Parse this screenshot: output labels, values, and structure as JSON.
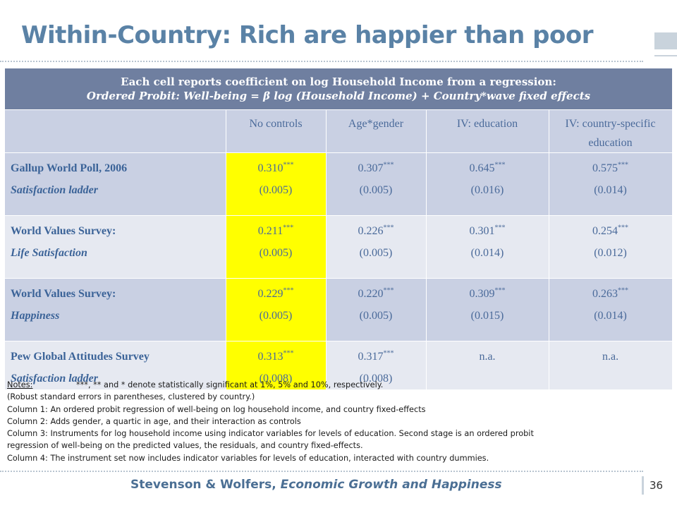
{
  "title": "Within-Country: Rich are happier than poor",
  "table": {
    "header_line1": "Each cell reports coefficient on log Household Income from a regression:",
    "header_line2": "Ordered Probit: Well-being = β log (Household Income) + Country*wave fixed effects",
    "columns": [
      "No controls",
      "Age*gender",
      "IV: education",
      "IV: country-specific education"
    ],
    "rows": [
      {
        "survey": "Gallup World Poll, 2006",
        "measure": "Satisfaction ladder",
        "cells": [
          {
            "coef": "0.310",
            "stars": "***",
            "se": "(0.005)"
          },
          {
            "coef": "0.307",
            "stars": "***",
            "se": "(0.005)"
          },
          {
            "coef": "0.645",
            "stars": "***",
            "se": "(0.016)"
          },
          {
            "coef": "0.575",
            "stars": "***",
            "se": "(0.014)"
          }
        ]
      },
      {
        "survey": "World Values Survey:",
        "measure": "Life Satisfaction",
        "cells": [
          {
            "coef": "0.211",
            "stars": "***",
            "se": "(0.005)"
          },
          {
            "coef": "0.226",
            "stars": "***",
            "se": "(0.005)"
          },
          {
            "coef": "0.301",
            "stars": "***",
            "se": "(0.014)"
          },
          {
            "coef": "0.254",
            "stars": "***",
            "se": "(0.012)"
          }
        ]
      },
      {
        "survey": "World Values Survey:",
        "measure": "Happiness",
        "cells": [
          {
            "coef": "0.229",
            "stars": "***",
            "se": "(0.005)"
          },
          {
            "coef": "0.220",
            "stars": "***",
            "se": "(0.005)"
          },
          {
            "coef": "0.309",
            "stars": "***",
            "se": "(0.015)"
          },
          {
            "coef": "0.263",
            "stars": "***",
            "se": "(0.014)"
          }
        ]
      },
      {
        "survey": "Pew Global Attitudes Survey",
        "measure": "Satisfaction ladder",
        "cells": [
          {
            "coef": "0.313",
            "stars": "***",
            "se": "(0.008)"
          },
          {
            "coef": "0.317",
            "stars": "***",
            "se": "(0.008)"
          },
          {
            "coef": "n.a.",
            "stars": "",
            "se": ""
          },
          {
            "coef": "n.a.",
            "stars": "",
            "se": ""
          }
        ]
      }
    ]
  },
  "notes": {
    "label": "Notes:",
    "line1": "***, ** and * denote statistically significant at 1%, 5% and 10%, respectively.",
    "line2": "(Robust standard errors in parentheses, clustered by country.)",
    "line3": "Column 1: An ordered probit regression of well-being on log household income, and country fixed-effects",
    "line4": "Column 2: Adds gender, a quartic in age, and their interaction as controls",
    "line5": "Column 3: Instruments for log household income using indicator variables for levels of education.  Second stage is an ordered probit",
    "line6": "regression of well-being on the predicted values, the residuals, and country fixed-effects.",
    "line7": "Column 4: The instrument set now includes indicator variables for levels of education, interacted with country dummies."
  },
  "footer": {
    "authors": "Stevenson & Wolfers, ",
    "work": "Economic Growth and Happiness",
    "page": "36"
  },
  "colors": {
    "title": "#5A82A6",
    "header_bg": "#6F7FA0",
    "row_dark": "#C9D0E3",
    "row_light": "#E6E9F1",
    "highlight": "#FFFF00"
  }
}
